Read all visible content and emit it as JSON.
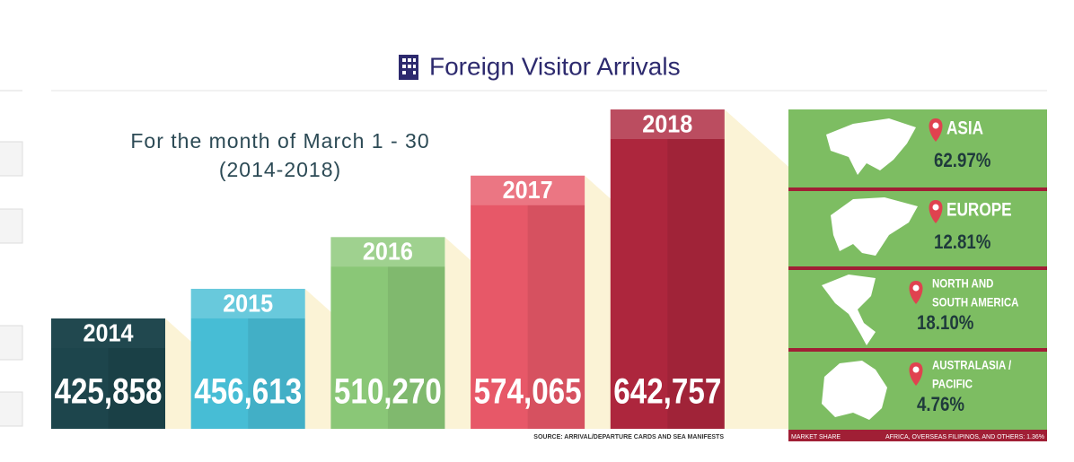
{
  "chart_data": {
    "type": "bar",
    "title": "Foreign Visitor Arrivals",
    "subtitle": [
      "For the month of March 1 - 30",
      "(2014-2018)"
    ],
    "categories": [
      "2014",
      "2015",
      "2016",
      "2017",
      "2018"
    ],
    "values": [
      425858,
      456613,
      510270,
      574065,
      642757
    ],
    "value_labels": [
      "425,858",
      "456,613",
      "510,270",
      "574,065",
      "642,757"
    ],
    "colors": [
      "#1d454c",
      "#47bdd5",
      "#8ac777",
      "#e75868",
      "#ad263d"
    ],
    "source": "SOURCE: ARRIVAL/DEPARTURE CARDS AND SEA MANIFESTS"
  },
  "market_share": {
    "title": "MARKET SHARE",
    "regions": [
      {
        "name": [
          "ASIA"
        ],
        "share": "62.97%"
      },
      {
        "name": [
          "EUROPE"
        ],
        "share": "12.81%"
      },
      {
        "name": [
          "NORTH AND",
          "SOUTH AMERICA"
        ],
        "share": "18.10%"
      },
      {
        "name": [
          "AUSTRALASIA /",
          "PACIFIC"
        ],
        "share": "4.76%"
      }
    ],
    "others": "AFRICA, OVERSEAS FILIPINOS, AND OTHERS: 1.36%"
  }
}
